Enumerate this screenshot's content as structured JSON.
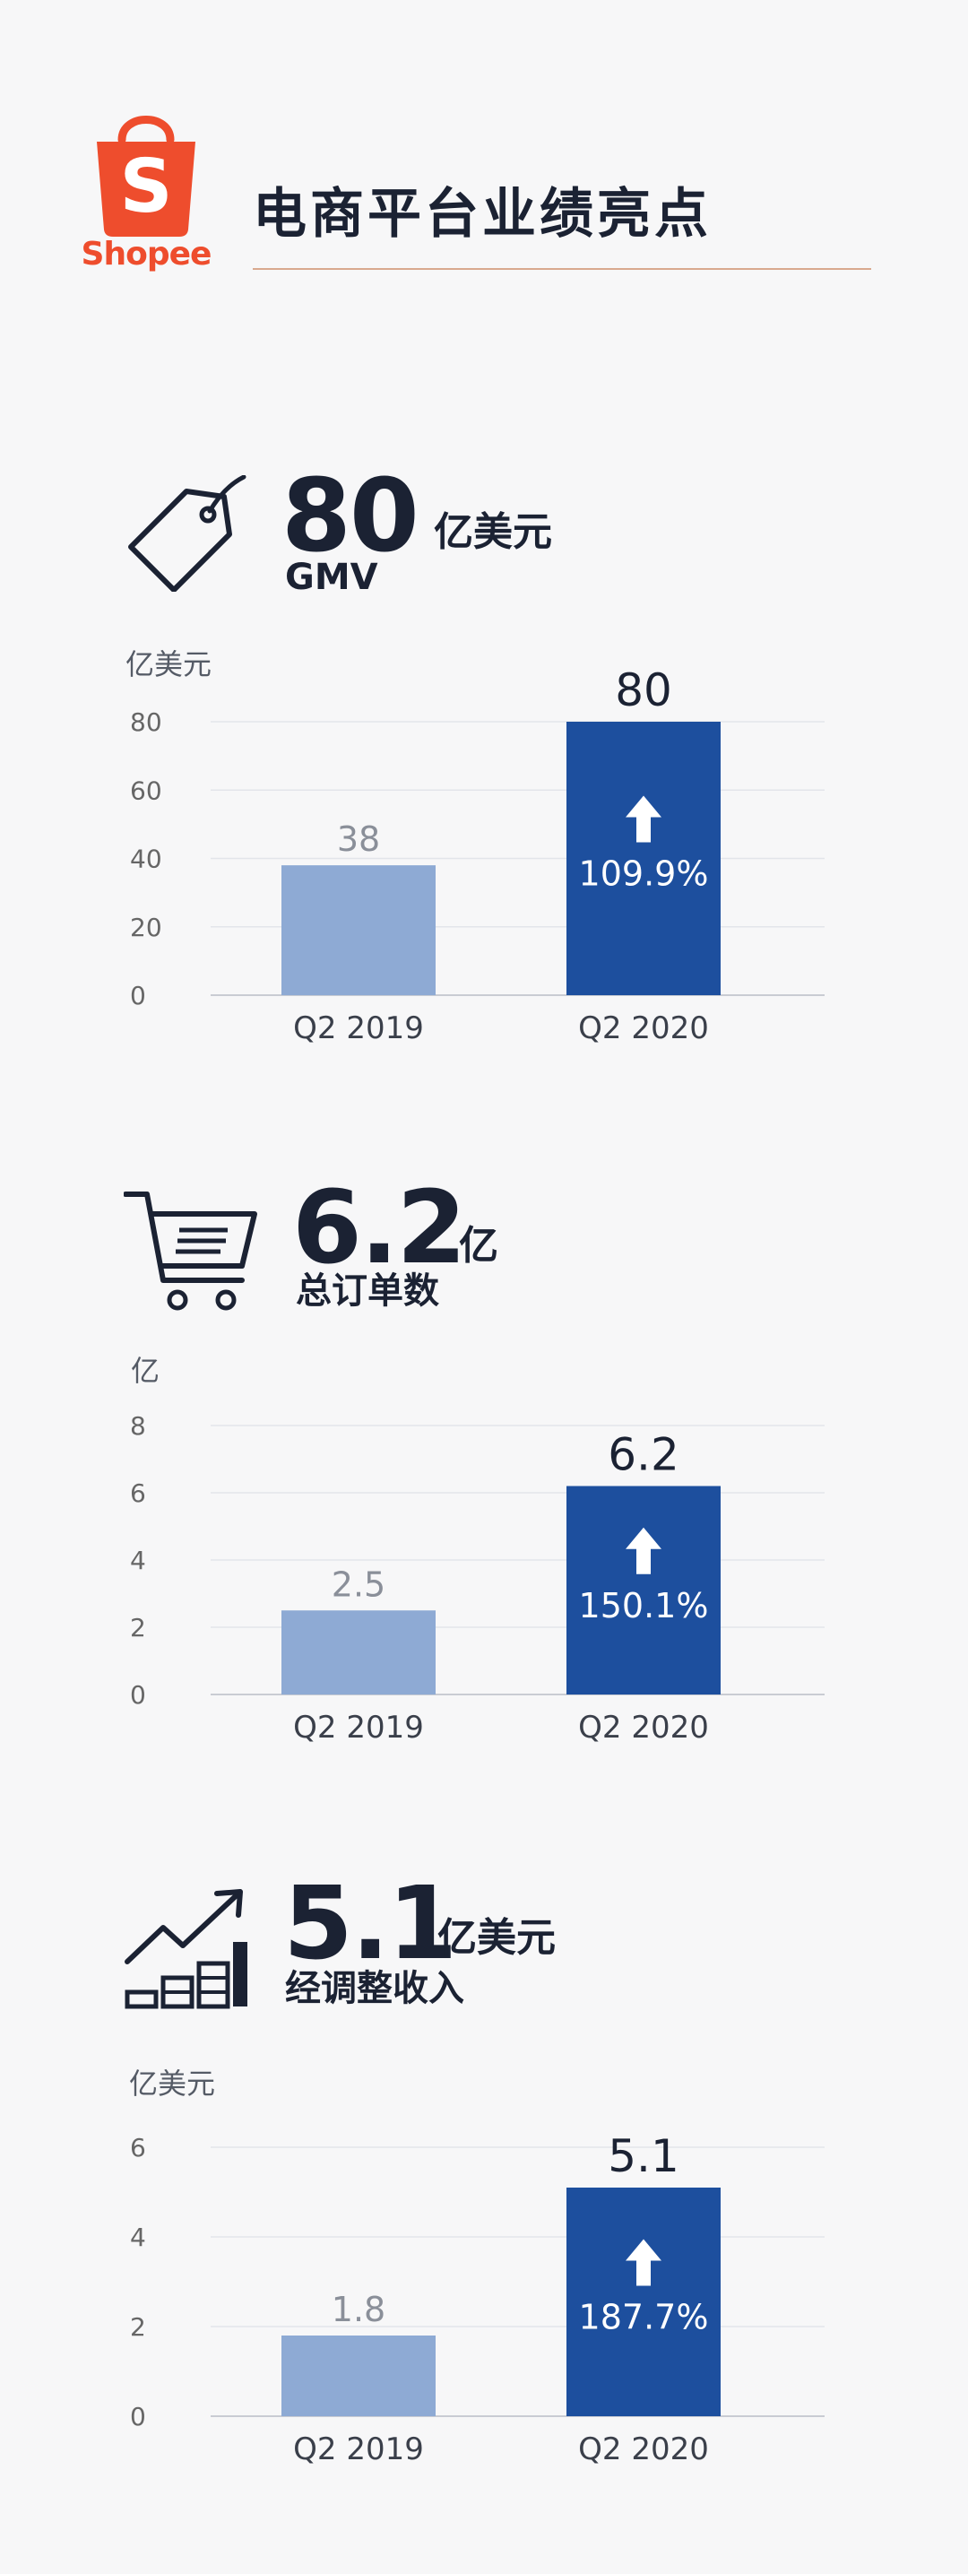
{
  "header": {
    "brand": "Shopee",
    "logo_letter": "S",
    "title": "电商平台业绩亮点"
  },
  "colors": {
    "brand": "#ee4d2d",
    "bar_old": "#8eaad4",
    "bar_new": "#1d4f9e",
    "text_dark": "#1b2233",
    "grid": "#e3e5ea"
  },
  "kpis": [
    {
      "icon": "price-tag-icon",
      "value": "80",
      "unit": "亿美元",
      "label": "GMV"
    },
    {
      "icon": "shopping-cart-icon",
      "value": "6.2",
      "unit": "亿",
      "label": "总订单数"
    },
    {
      "icon": "growth-chart-icon",
      "value": "5.1",
      "unit": "亿美元",
      "label": "经调整收入"
    }
  ],
  "chart_data": [
    {
      "type": "bar",
      "ylabel": "亿美元",
      "categories": [
        "Q2 2019",
        "Q2 2020"
      ],
      "values": [
        38,
        80
      ],
      "value_labels": [
        "38",
        "80"
      ],
      "growth_label": "109.9%",
      "yticks": [
        0,
        20,
        40,
        60,
        80
      ],
      "ylim": [
        0,
        80
      ],
      "grid": true
    },
    {
      "type": "bar",
      "ylabel": "亿",
      "categories": [
        "Q2 2019",
        "Q2 2020"
      ],
      "values": [
        2.5,
        6.2
      ],
      "value_labels": [
        "2.5",
        "6.2"
      ],
      "growth_label": "150.1%",
      "yticks": [
        0,
        2,
        4,
        6,
        8
      ],
      "ylim": [
        0,
        8
      ],
      "grid": true
    },
    {
      "type": "bar",
      "ylabel": "亿美元",
      "categories": [
        "Q2 2019",
        "Q2 2020"
      ],
      "values": [
        1.8,
        5.1
      ],
      "value_labels": [
        "1.8",
        "5.1"
      ],
      "growth_label": "187.7%",
      "yticks": [
        0,
        2,
        4,
        6
      ],
      "ylim": [
        0,
        6
      ],
      "grid": true
    }
  ]
}
